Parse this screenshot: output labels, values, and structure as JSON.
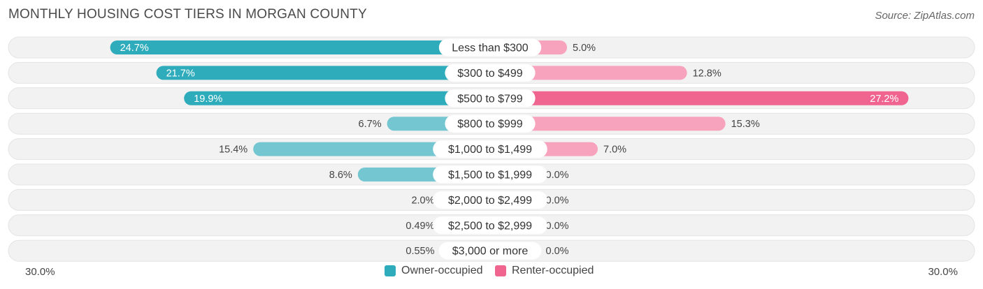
{
  "title": "MONTHLY HOUSING COST TIERS IN MORGAN COUNTY",
  "source": "Source: ZipAtlas.com",
  "colors": {
    "owner_dark": "#2eacbb",
    "owner_light": "#74c6d0",
    "renter_dark": "#f06590",
    "renter_light": "#f8a3bd",
    "row_bg": "#f2f2f2"
  },
  "legend": {
    "owner_label": "Owner-occupied",
    "renter_label": "Renter-occupied"
  },
  "axis": {
    "left_label": "30.0%",
    "right_label": "30.0%"
  },
  "chart_data": {
    "type": "bar",
    "orientation": "horizontal-diverging",
    "categories": [
      "Less than $300",
      "$300 to $499",
      "$500 to $799",
      "$800 to $999",
      "$1,000 to $1,499",
      "$1,500 to $1,999",
      "$2,000 to $2,499",
      "$2,500 to $2,999",
      "$3,000 or more"
    ],
    "series": [
      {
        "name": "Owner-occupied",
        "values": [
          24.7,
          21.7,
          19.9,
          6.7,
          15.4,
          8.6,
          2.0,
          0.49,
          0.55
        ],
        "labels": [
          "24.7%",
          "21.7%",
          "19.9%",
          "6.7%",
          "15.4%",
          "8.6%",
          "2.0%",
          "0.49%",
          "0.55%"
        ]
      },
      {
        "name": "Renter-occupied",
        "values": [
          5.0,
          12.8,
          27.2,
          15.3,
          7.0,
          0.0,
          0.0,
          0.0,
          0.0
        ],
        "labels": [
          "5.0%",
          "12.8%",
          "27.2%",
          "15.3%",
          "7.0%",
          "0.0%",
          "0.0%",
          "0.0%",
          "0.0%"
        ]
      }
    ],
    "xlim": [
      -30,
      30
    ],
    "legend_position": "bottom-center"
  }
}
